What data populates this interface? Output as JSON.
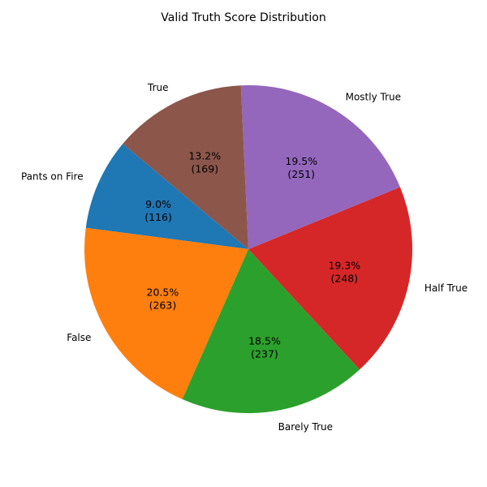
{
  "chart_data": {
    "type": "pie",
    "title": "Valid Truth Score Distribution",
    "start_angle_deg": 140,
    "direction": "counterclockwise",
    "slices": [
      {
        "label": "Pants on Fire",
        "value": 116,
        "percent": "9.0%",
        "count_label": "(116)",
        "color": "#1f77b4"
      },
      {
        "label": "False",
        "value": 263,
        "percent": "20.5%",
        "count_label": "(263)",
        "color": "#ff7f0e"
      },
      {
        "label": "Barely True",
        "value": 237,
        "percent": "18.5%",
        "count_label": "(237)",
        "color": "#2ca02c"
      },
      {
        "label": "Half True",
        "value": 248,
        "percent": "19.3%",
        "count_label": "(248)",
        "color": "#d62728"
      },
      {
        "label": "Mostly True",
        "value": 251,
        "percent": "19.5%",
        "count_label": "(251)",
        "color": "#9467bd"
      },
      {
        "label": "True",
        "value": 169,
        "percent": "13.2%",
        "count_label": "(169)",
        "color": "#8c564b"
      }
    ]
  }
}
